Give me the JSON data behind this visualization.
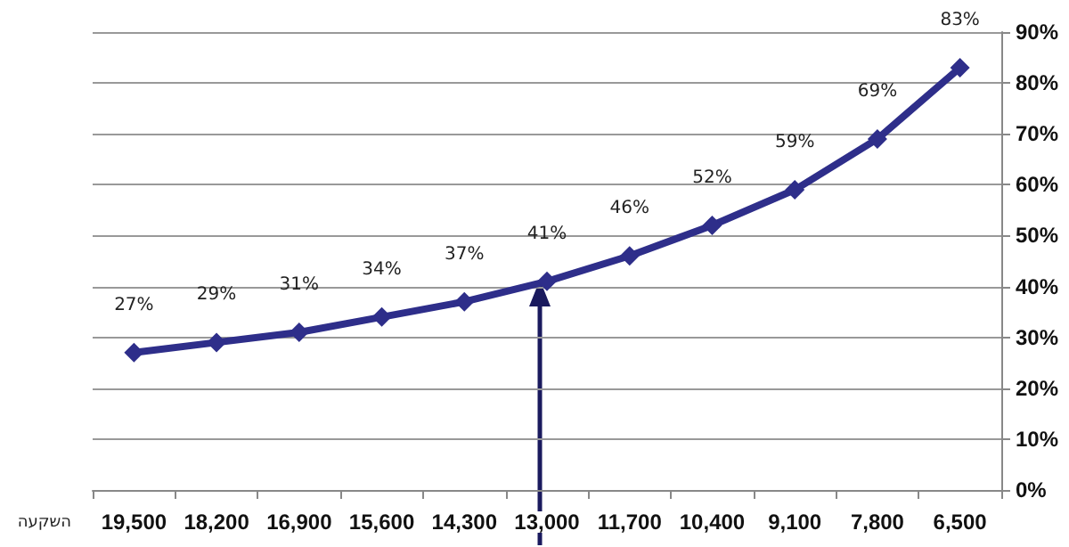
{
  "chart_data": {
    "type": "line",
    "xlabel": "השקעה",
    "categories": [
      "19,500",
      "18,200",
      "16,900",
      "15,600",
      "14,300",
      "13,000",
      "11,700",
      "10,400",
      "9,100",
      "7,800",
      "6,500"
    ],
    "series": [
      {
        "color": "#2e2e8a",
        "values": [
          27,
          29,
          31,
          34,
          37,
          41,
          46,
          52,
          59,
          69,
          83
        ],
        "value_labels": [
          "27%",
          "29%",
          "31%",
          "34%",
          "37%",
          "41%",
          "46%",
          "52%",
          "59%",
          "69%",
          "83%"
        ]
      }
    ],
    "ylim": [
      0,
      90
    ],
    "yticks": [
      {
        "value": 0,
        "label": "0%"
      },
      {
        "value": 10,
        "label": "10%"
      },
      {
        "value": 20,
        "label": "20%"
      },
      {
        "value": 30,
        "label": "30%"
      },
      {
        "value": 40,
        "label": "40%"
      },
      {
        "value": 50,
        "label": "50%"
      },
      {
        "value": 60,
        "label": "60%"
      },
      {
        "value": 70,
        "label": "70%"
      },
      {
        "value": 80,
        "label": "80%"
      },
      {
        "value": 90,
        "label": "90%"
      }
    ],
    "grid": "y",
    "marker": "diamond",
    "line_style": "solid"
  }
}
